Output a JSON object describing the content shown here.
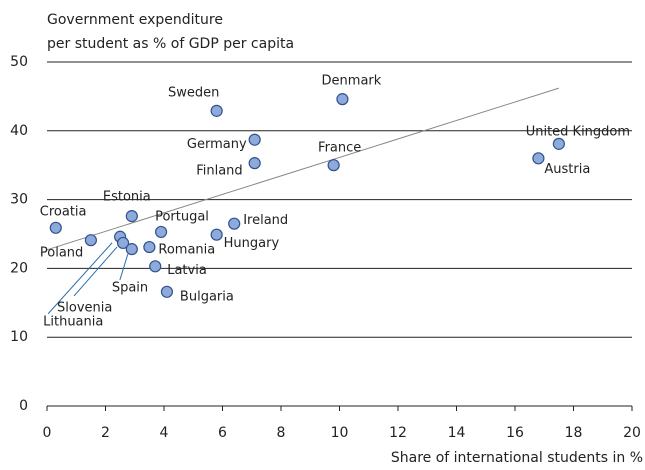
{
  "chart_data": {
    "type": "scatter",
    "ylabel": [
      "Government expenditure",
      "per student as % of GDP per capita"
    ],
    "xlabel": "Share of international students in %",
    "series": [
      {
        "name": "Countries",
        "color": "#8eaadb",
        "labels": [
          "Croatia",
          "Poland",
          "Lithuania",
          "Slovenia",
          "Spain",
          "Estonia",
          "Portugal",
          "Romania",
          "Latvia",
          "Bulgaria",
          "Sweden",
          "Germany",
          "Finland",
          "Hungary",
          "Ireland",
          "France",
          "Denmark",
          "United Kingdom",
          "Austria"
        ],
        "x": [
          0.3,
          1.5,
          2.5,
          2.6,
          2.9,
          2.9,
          3.9,
          3.5,
          3.7,
          4.1,
          5.8,
          7.1,
          7.1,
          5.8,
          6.4,
          9.8,
          10.1,
          17.5,
          16.8
        ],
        "values": [
          25.9,
          24.1,
          24.6,
          23.7,
          22.8,
          27.6,
          25.3,
          23.1,
          20.3,
          16.6,
          42.9,
          38.7,
          35.3,
          24.9,
          26.5,
          35.0,
          44.6,
          38.1,
          36.0
        ]
      }
    ],
    "trendline": {
      "x": [
        0,
        17.5
      ],
      "values": [
        22.7,
        46.2
      ]
    },
    "xlim": [
      0,
      20
    ],
    "xticks": [
      0,
      2,
      4,
      6,
      8,
      10,
      12,
      14,
      16,
      18,
      20
    ],
    "ylim": [
      0,
      50
    ],
    "yticks": [
      0,
      10,
      20,
      30,
      40,
      50
    ],
    "grid": true
  }
}
